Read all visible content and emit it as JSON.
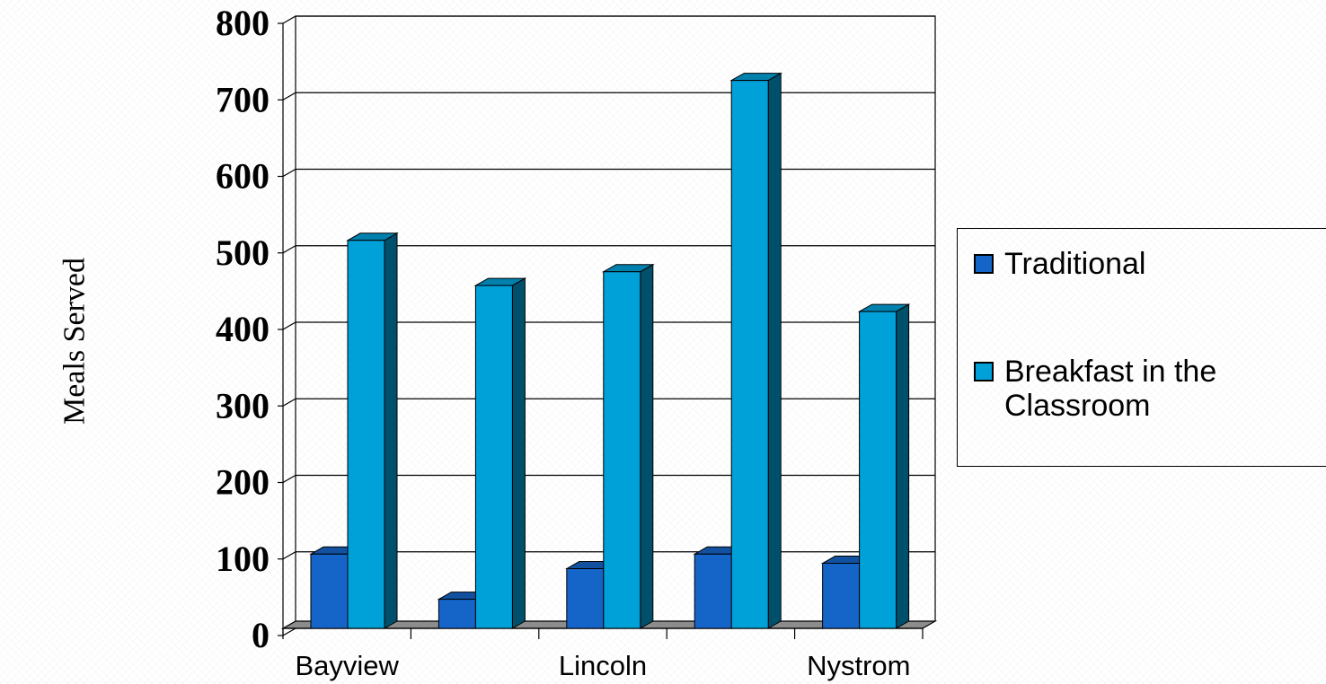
{
  "chart_data": {
    "type": "bar",
    "categories": [
      "Bayview",
      "",
      "Lincoln",
      "",
      "Nystrom"
    ],
    "series": [
      {
        "name": "Traditional",
        "values": [
          97,
          38,
          78,
          97,
          85
        ],
        "color": "#1565c8"
      },
      {
        "name": "Breakfast in the\nClassroom",
        "values": [
          507,
          448,
          466,
          716,
          414
        ],
        "color": "#00a0d8"
      }
    ],
    "ylabel": "Meals\nServed",
    "ylim": [
      0,
      800
    ],
    "yticks": [
      "0",
      "100",
      "200",
      "300",
      "400",
      "500",
      "600",
      "700",
      "800"
    ],
    "xtick_labels": [
      "Bayview",
      "Lincoln",
      "Nystrom"
    ],
    "grid": true,
    "legend": "right",
    "three_d": true
  }
}
